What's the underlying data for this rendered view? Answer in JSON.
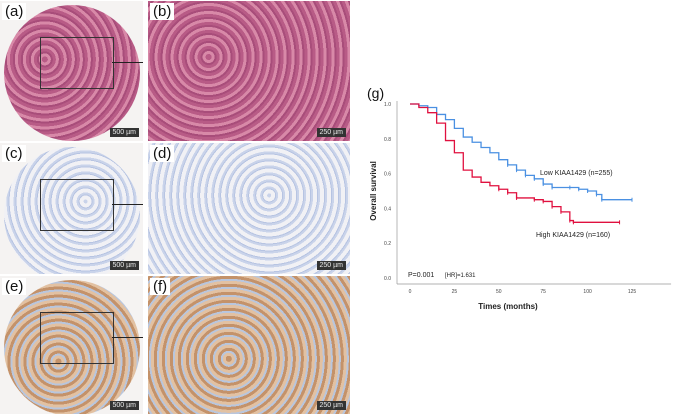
{
  "panels": [
    {
      "label": "(a)",
      "scale": "500 µm",
      "stain": "he",
      "type": "core"
    },
    {
      "label": "(b)",
      "scale": "250 µm",
      "stain": "he",
      "type": "zoom"
    },
    {
      "label": "(c)",
      "scale": "500 µm",
      "stain": "neg",
      "type": "core"
    },
    {
      "label": "(d)",
      "scale": "250 µm",
      "stain": "neg",
      "type": "zoom"
    },
    {
      "label": "(e)",
      "scale": "500 µm",
      "stain": "pos",
      "type": "core"
    },
    {
      "label": "(f)",
      "scale": "250 µm",
      "stain": "pos",
      "type": "zoom"
    }
  ],
  "chart_data": {
    "panel_label": "(g)",
    "type": "line",
    "subtype": "kaplan-meier step",
    "xlabel": "Times (months)",
    "ylabel": "Overall survival",
    "xlim": [
      0,
      147
    ],
    "ylim": [
      0,
      1.0
    ],
    "xticks": [
      0,
      25,
      50,
      75,
      100,
      125
    ],
    "yticks": [
      "0.0",
      "0.2",
      "0.4",
      "0.6",
      "0.8",
      "1.0"
    ],
    "grid": false,
    "annotation_p": "P=0.001",
    "annotation_hr": "[HR]=1.631",
    "series": [
      {
        "name": "Low KIAA1429 (n=255)",
        "color": "#4a90e2",
        "x": [
          0,
          5,
          10,
          15,
          20,
          25,
          30,
          35,
          40,
          45,
          50,
          55,
          60,
          65,
          70,
          75,
          80,
          90,
          95,
          100,
          105,
          108,
          125
        ],
        "y": [
          1,
          0.99,
          0.98,
          0.94,
          0.91,
          0.86,
          0.81,
          0.78,
          0.75,
          0.72,
          0.68,
          0.65,
          0.62,
          0.59,
          0.57,
          0.54,
          0.52,
          0.52,
          0.51,
          0.5,
          0.48,
          0.45,
          0.45
        ]
      },
      {
        "name": "High KIAA1429 (n=160)",
        "color": "#e0103f",
        "x": [
          0,
          5,
          10,
          15,
          20,
          25,
          30,
          35,
          40,
          45,
          50,
          55,
          60,
          70,
          75,
          80,
          85,
          90,
          92,
          118
        ],
        "y": [
          1,
          0.98,
          0.95,
          0.89,
          0.79,
          0.72,
          0.62,
          0.58,
          0.55,
          0.53,
          0.51,
          0.49,
          0.46,
          0.45,
          0.44,
          0.41,
          0.38,
          0.33,
          0.32,
          0.32
        ]
      }
    ]
  }
}
